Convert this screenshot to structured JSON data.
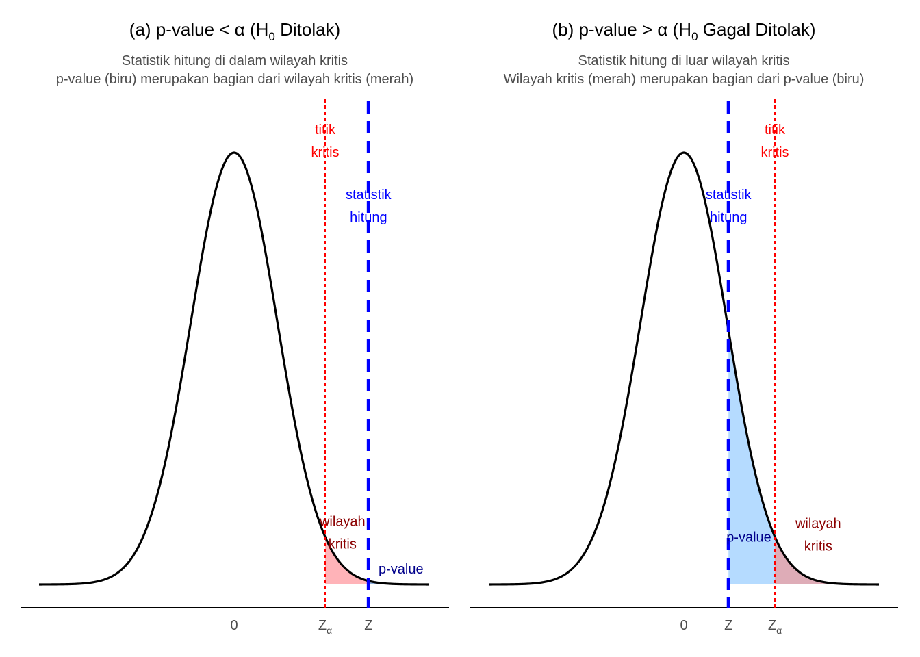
{
  "chart_data": [
    {
      "type": "area",
      "title_parts": [
        "(a) p-value < ",
        "α",
        " (H",
        "0",
        " Ditolak)"
      ],
      "subtitle": [
        "Statistik hitung di dalam wilayah kritis",
        "p-value (biru) merupakan bagian dari wilayah kritis (merah)"
      ],
      "curve": "standard normal density",
      "xlim": [
        -4.5,
        4.5
      ],
      "z_alpha": 2.1,
      "z_stat": 3.1,
      "xticks": [
        {
          "x": 0,
          "label": "0",
          "sub": ""
        },
        {
          "x": 2.1,
          "label": "Z",
          "sub": "α"
        },
        {
          "x": 3.1,
          "label": "Z",
          "sub": ""
        }
      ],
      "shaded": [
        {
          "name": "wilayah kritis",
          "from": 2.1,
          "to": 3.1,
          "color": "#ffb3b8"
        },
        {
          "name": "p-value",
          "from": 3.1,
          "to": 4.5,
          "color": "#8faed9"
        }
      ],
      "annotations": [
        {
          "lines": [
            "titik",
            "kritis"
          ],
          "x": 2.1,
          "y": 0.41,
          "color": "#ff0000"
        },
        {
          "lines": [
            "statistik",
            "hitung"
          ],
          "x": 3.1,
          "y": 0.35,
          "color": "#0000ff"
        },
        {
          "lines": [
            "wilayah",
            "kritis"
          ],
          "x": 2.5,
          "y": 0.048,
          "color": "#8b0000"
        },
        {
          "lines": [
            "p-value"
          ],
          "x": 3.85,
          "y": 0.0145,
          "color": "#00008b"
        }
      ]
    },
    {
      "type": "area",
      "title_parts": [
        "(b) p-value > ",
        "α",
        " (H",
        "0",
        " Gagal Ditolak)"
      ],
      "subtitle": [
        "Statistik hitung di luar wilayah kritis",
        "Wilayah kritis (merah) merupakan bagian dari p-value (biru)"
      ],
      "curve": "standard normal density",
      "xlim": [
        -4.5,
        4.5
      ],
      "z_alpha": 2.1,
      "z_stat": 1.03,
      "xticks": [
        {
          "x": 0,
          "label": "0",
          "sub": ""
        },
        {
          "x": 1.03,
          "label": "Z",
          "sub": ""
        },
        {
          "x": 2.1,
          "label": "Z",
          "sub": "α"
        }
      ],
      "shaded": [
        {
          "name": "p-value",
          "from": 1.03,
          "to": 2.1,
          "color": "#b5dbff"
        },
        {
          "name": "wilayah kritis",
          "from": 2.1,
          "to": 4.5,
          "color": "#deacb7"
        }
      ],
      "annotations": [
        {
          "lines": [
            "titik",
            "kritis"
          ],
          "x": 2.1,
          "y": 0.41,
          "color": "#ff0000"
        },
        {
          "lines": [
            "statistik",
            "hitung"
          ],
          "x": 1.03,
          "y": 0.35,
          "color": "#0000ff"
        },
        {
          "lines": [
            "p-value"
          ],
          "x": 1.5,
          "y": 0.044,
          "color": "#00008b"
        },
        {
          "lines": [
            "wilayah",
            "kritis"
          ],
          "x": 3.1,
          "y": 0.046,
          "color": "#8b0000"
        }
      ]
    }
  ]
}
